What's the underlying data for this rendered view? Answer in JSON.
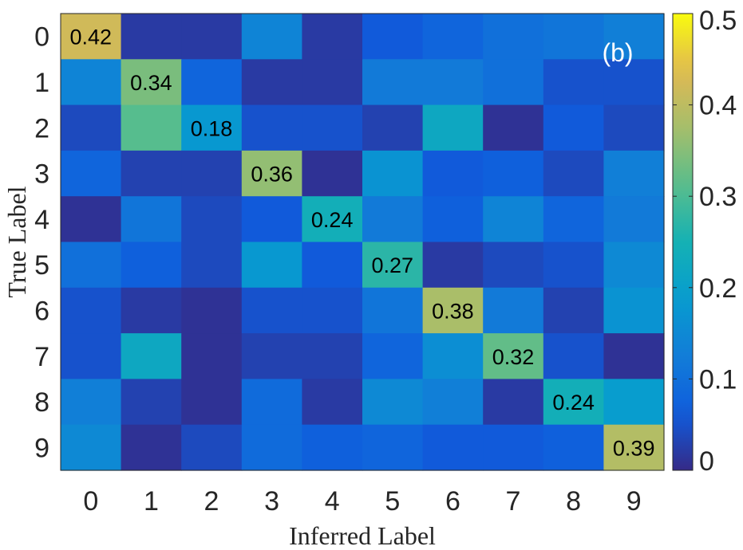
{
  "chart_data": {
    "type": "heatmap",
    "title": "",
    "panel_label": "(b)",
    "xlabel": "Inferred Label",
    "ylabel": "True Label",
    "x_categories": [
      "0",
      "1",
      "2",
      "3",
      "4",
      "5",
      "6",
      "7",
      "8",
      "9"
    ],
    "y_categories": [
      "0",
      "1",
      "2",
      "3",
      "4",
      "5",
      "6",
      "7",
      "8",
      "9"
    ],
    "values": [
      [
        0.42,
        0.02,
        0.02,
        0.14,
        0.02,
        0.06,
        0.08,
        0.1,
        0.11,
        0.13
      ],
      [
        0.14,
        0.34,
        0.08,
        0.02,
        0.02,
        0.12,
        0.12,
        0.1,
        0.05,
        0.05
      ],
      [
        0.04,
        0.31,
        0.18,
        0.05,
        0.05,
        0.03,
        0.22,
        0.01,
        0.06,
        0.04
      ],
      [
        0.08,
        0.03,
        0.03,
        0.36,
        0.01,
        0.17,
        0.06,
        0.07,
        0.04,
        0.13
      ],
      [
        0.01,
        0.11,
        0.04,
        0.06,
        0.24,
        0.12,
        0.07,
        0.14,
        0.08,
        0.12
      ],
      [
        0.1,
        0.07,
        0.04,
        0.18,
        0.06,
        0.27,
        0.02,
        0.04,
        0.05,
        0.15
      ],
      [
        0.05,
        0.02,
        0.01,
        0.05,
        0.05,
        0.11,
        0.38,
        0.12,
        0.03,
        0.17
      ],
      [
        0.05,
        0.22,
        0.01,
        0.03,
        0.03,
        0.08,
        0.16,
        0.32,
        0.05,
        0.01
      ],
      [
        0.13,
        0.03,
        0.01,
        0.09,
        0.02,
        0.15,
        0.13,
        0.02,
        0.24,
        0.19
      ],
      [
        0.15,
        0.01,
        0.04,
        0.09,
        0.07,
        0.08,
        0.06,
        0.06,
        0.07,
        0.39
      ]
    ],
    "cell_labels": [
      {
        "row": 0,
        "col": 0,
        "text": "0.42"
      },
      {
        "row": 1,
        "col": 1,
        "text": "0.34"
      },
      {
        "row": 2,
        "col": 2,
        "text": "0.18"
      },
      {
        "row": 3,
        "col": 3,
        "text": "0.36"
      },
      {
        "row": 4,
        "col": 4,
        "text": "0.24"
      },
      {
        "row": 5,
        "col": 5,
        "text": "0.27"
      },
      {
        "row": 6,
        "col": 6,
        "text": "0.38"
      },
      {
        "row": 7,
        "col": 7,
        "text": "0.32"
      },
      {
        "row": 8,
        "col": 8,
        "text": "0.24"
      },
      {
        "row": 9,
        "col": 9,
        "text": "0.39"
      }
    ],
    "colorbar": {
      "colormap": "parula",
      "range": [
        0,
        0.5
      ],
      "ticks": [
        0,
        0.1,
        0.2,
        0.3,
        0.4,
        0.5
      ],
      "tick_labels": [
        "0",
        "0.1",
        "0.2",
        "0.3",
        "0.4",
        "0.5"
      ]
    },
    "grid": false
  },
  "colors": {
    "panel_label": "#ffffff",
    "axis_text": "#262626",
    "cell_text": "#000000"
  }
}
